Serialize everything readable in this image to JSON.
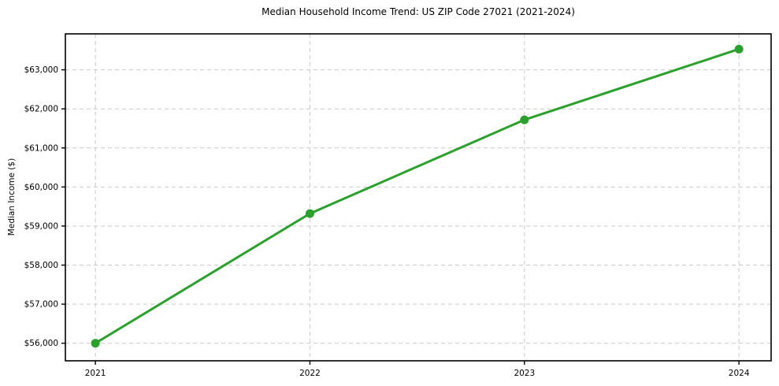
{
  "chart_data": {
    "type": "line",
    "title": "Median Household Income Trend: US ZIP Code 27021 (2021-2024)",
    "xlabel": "",
    "ylabel": "Median Income ($)",
    "categories": [
      "2021",
      "2022",
      "2023",
      "2024"
    ],
    "x": [
      2021,
      2022,
      2023,
      2024
    ],
    "values": [
      56000,
      59320,
      61720,
      63530
    ],
    "y_ticks": [
      56000,
      57000,
      58000,
      59000,
      60000,
      61000,
      62000,
      63000
    ],
    "y_tick_labels": [
      "$56,000",
      "$57,000",
      "$58,000",
      "$59,000",
      "$60,000",
      "$61,000",
      "$62,000",
      "$63,000"
    ],
    "ylim": [
      55550,
      63920
    ],
    "xlim": [
      2020.86,
      2024.15
    ],
    "grid": true,
    "grid_style": "dashed",
    "grid_color": "#c9c9c9",
    "line_color": "#2ca02c",
    "marker": "circle",
    "marker_size": 5.5,
    "axis_color": "#000000",
    "text_color": "#000000",
    "legend_position": "none"
  }
}
